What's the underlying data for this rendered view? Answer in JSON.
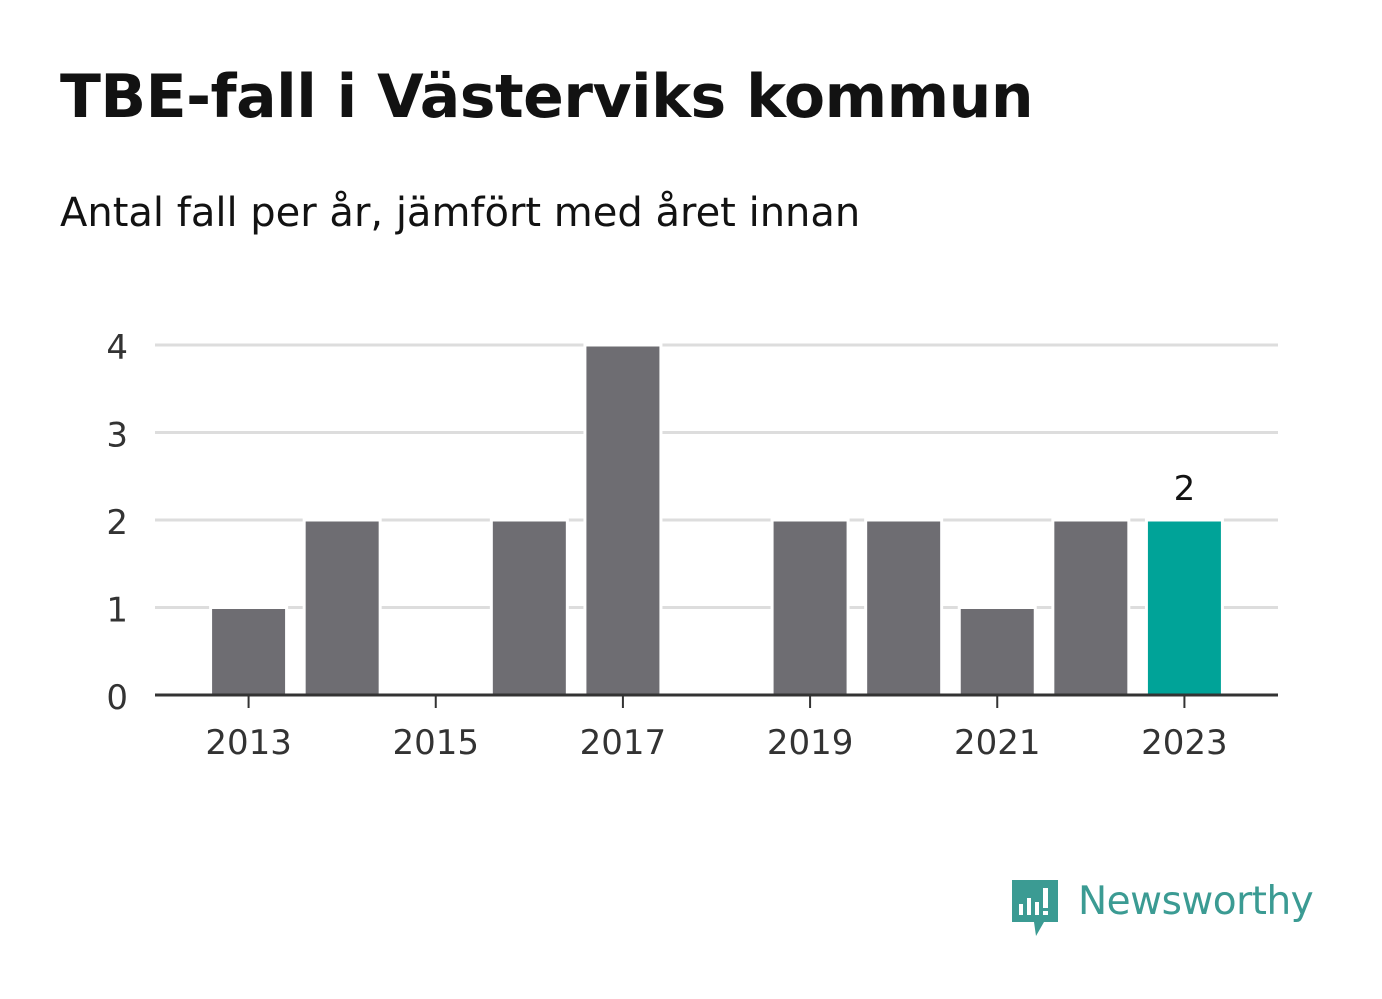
{
  "title": "TBE-fall i Västerviks kommun",
  "subtitle": "Antal fall per år, jämfört med året innan",
  "brand": {
    "name": "Newsworthy",
    "icon": "newsworthy-logo-icon",
    "color": "#3b9b93"
  },
  "colors": {
    "bar": "#6e6d72",
    "highlight": "#00a398",
    "grid": "#dddddd",
    "axis": "#333333",
    "text": "#333333"
  },
  "chart_data": {
    "type": "bar",
    "title": "TBE-fall i Västerviks kommun",
    "subtitle": "Antal fall per år, jämfört med året innan",
    "xlabel": "",
    "ylabel": "",
    "categories": [
      2013,
      2014,
      2015,
      2016,
      2017,
      2018,
      2019,
      2020,
      2021,
      2022,
      2023
    ],
    "values": [
      1,
      2,
      0,
      2,
      4,
      0,
      2,
      2,
      1,
      2,
      2
    ],
    "x_ticks": [
      "2013",
      "2015",
      "2017",
      "2019",
      "2021",
      "2023"
    ],
    "y_ticks": [
      0,
      1,
      2,
      3,
      4
    ],
    "ylim": [
      0,
      4
    ],
    "grid": true,
    "legend": "none",
    "highlight_category": 2023,
    "data_labels": [
      {
        "category": 2023,
        "label": "2"
      }
    ]
  }
}
